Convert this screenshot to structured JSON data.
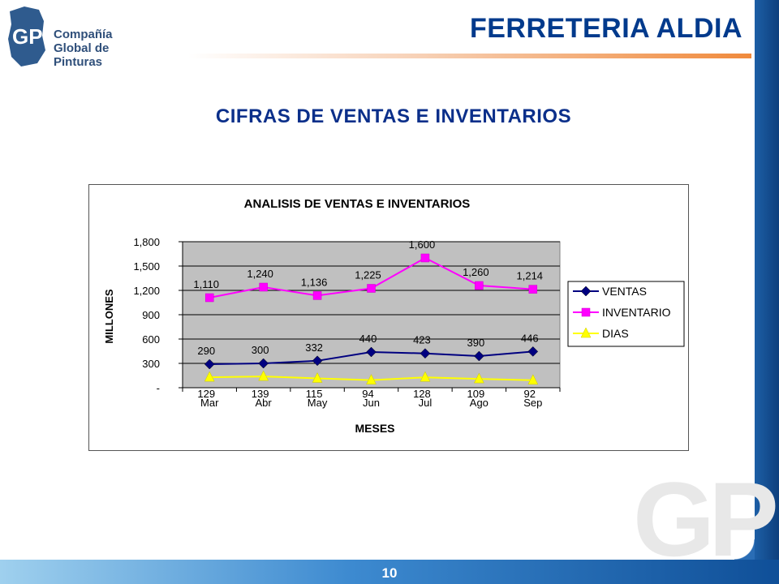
{
  "header": {
    "brand_title": "FERRETERIA ALDIA",
    "logo_initials": "GP",
    "logo_line1": "Compañía",
    "logo_line2": "Global de Pinturas"
  },
  "section_title": "CIFRAS DE VENTAS E INVENTARIOS",
  "watermark": "GP",
  "page_number": "10",
  "colors": {
    "title": "#003a8c",
    "ventas": "#000080",
    "inventario": "#ff00ff",
    "dias": "#ffff00",
    "plot_bg": "#c0c0c0"
  },
  "chart_data": {
    "type": "line",
    "title": "ANALISIS DE VENTAS E INVENTARIOS",
    "xlabel": "MESES",
    "ylabel": "MILLONES",
    "categories": [
      "Mar",
      "Abr",
      "May",
      "Jun",
      "Jul",
      "Ago",
      "Sep"
    ],
    "ylim": [
      0,
      1800
    ],
    "yticks": [
      {
        "value": 0,
        "label": "-"
      },
      {
        "value": 300,
        "label": "300"
      },
      {
        "value": 600,
        "label": "600"
      },
      {
        "value": 900,
        "label": "900"
      },
      {
        "value": 1200,
        "label": "1,200"
      },
      {
        "value": 1500,
        "label": "1,500"
      },
      {
        "value": 1800,
        "label": "1,800"
      }
    ],
    "grid": true,
    "legend_position": "right",
    "series": [
      {
        "name": "VENTAS",
        "marker": "diamond",
        "values": [
          290,
          300,
          332,
          440,
          423,
          390,
          446
        ],
        "labels": [
          "290",
          "300",
          "332",
          "440",
          "423",
          "390",
          "446"
        ]
      },
      {
        "name": "INVENTARIO",
        "marker": "square",
        "values": [
          1110,
          1240,
          1136,
          1225,
          1600,
          1260,
          1214
        ],
        "labels": [
          "1,110",
          "1,240",
          "1,136",
          "1,225",
          "1,600",
          "1,260",
          "1,214"
        ]
      },
      {
        "name": "DIAS",
        "marker": "triangle",
        "values": [
          129,
          139,
          115,
          94,
          128,
          109,
          92
        ],
        "labels": [
          "129",
          "139",
          "115",
          "94",
          "128",
          "109",
          "92"
        ]
      }
    ]
  }
}
